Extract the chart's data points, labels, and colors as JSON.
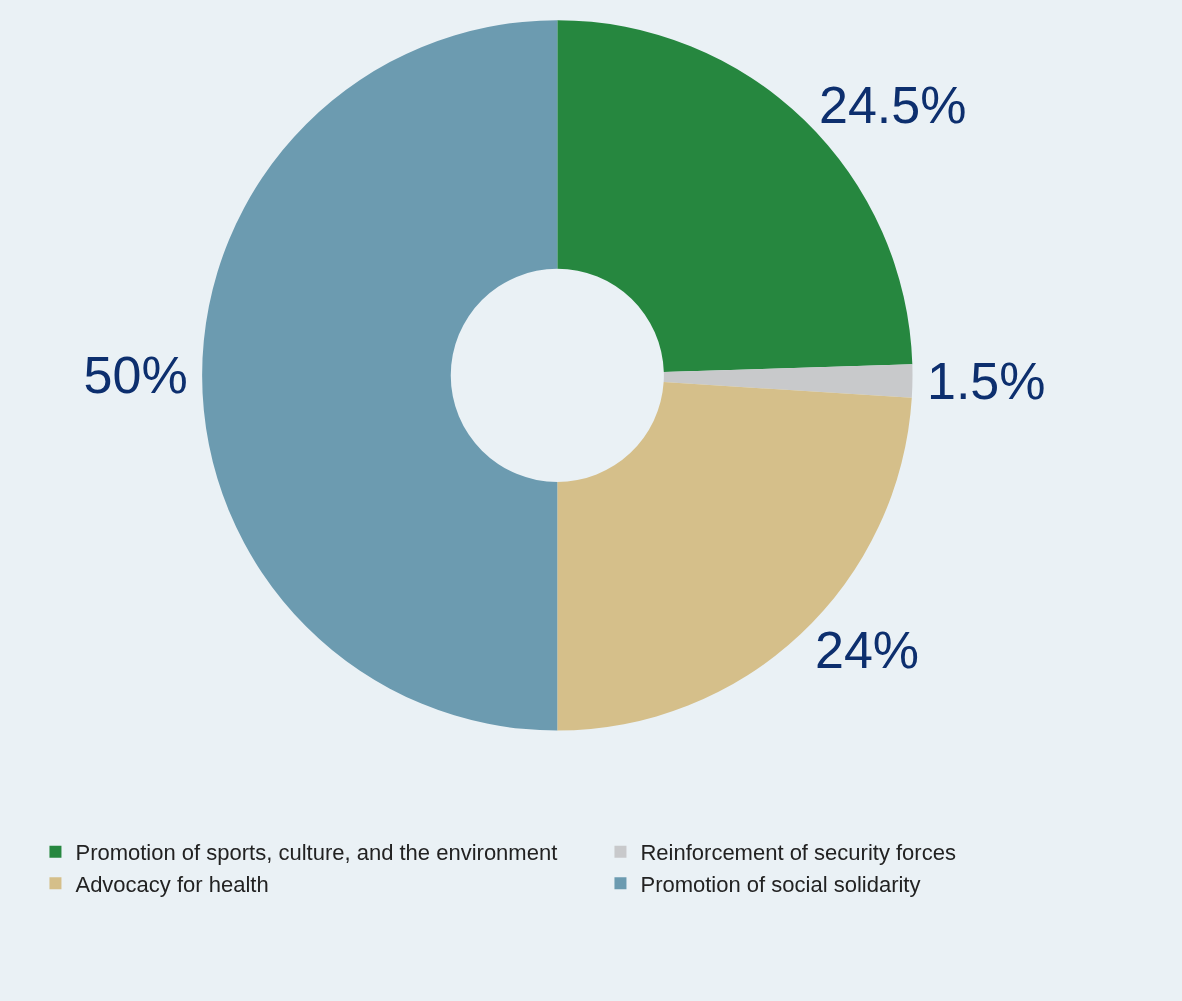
{
  "chart_data": {
    "type": "donut",
    "categories": [
      "Promotion of sports, culture, and the environment",
      "Reinforcement of security forces",
      "Advocacy for health",
      "Promotion of social solidarity"
    ],
    "values": [
      24.5,
      1.5,
      24,
      50
    ],
    "colors": [
      "#26873f",
      "#c8c9cb",
      "#d5bf8a",
      "#6c9bb0"
    ],
    "value_labels": [
      "24.5%",
      "1.5%",
      "24%",
      "50%"
    ],
    "legend": "bottom"
  }
}
